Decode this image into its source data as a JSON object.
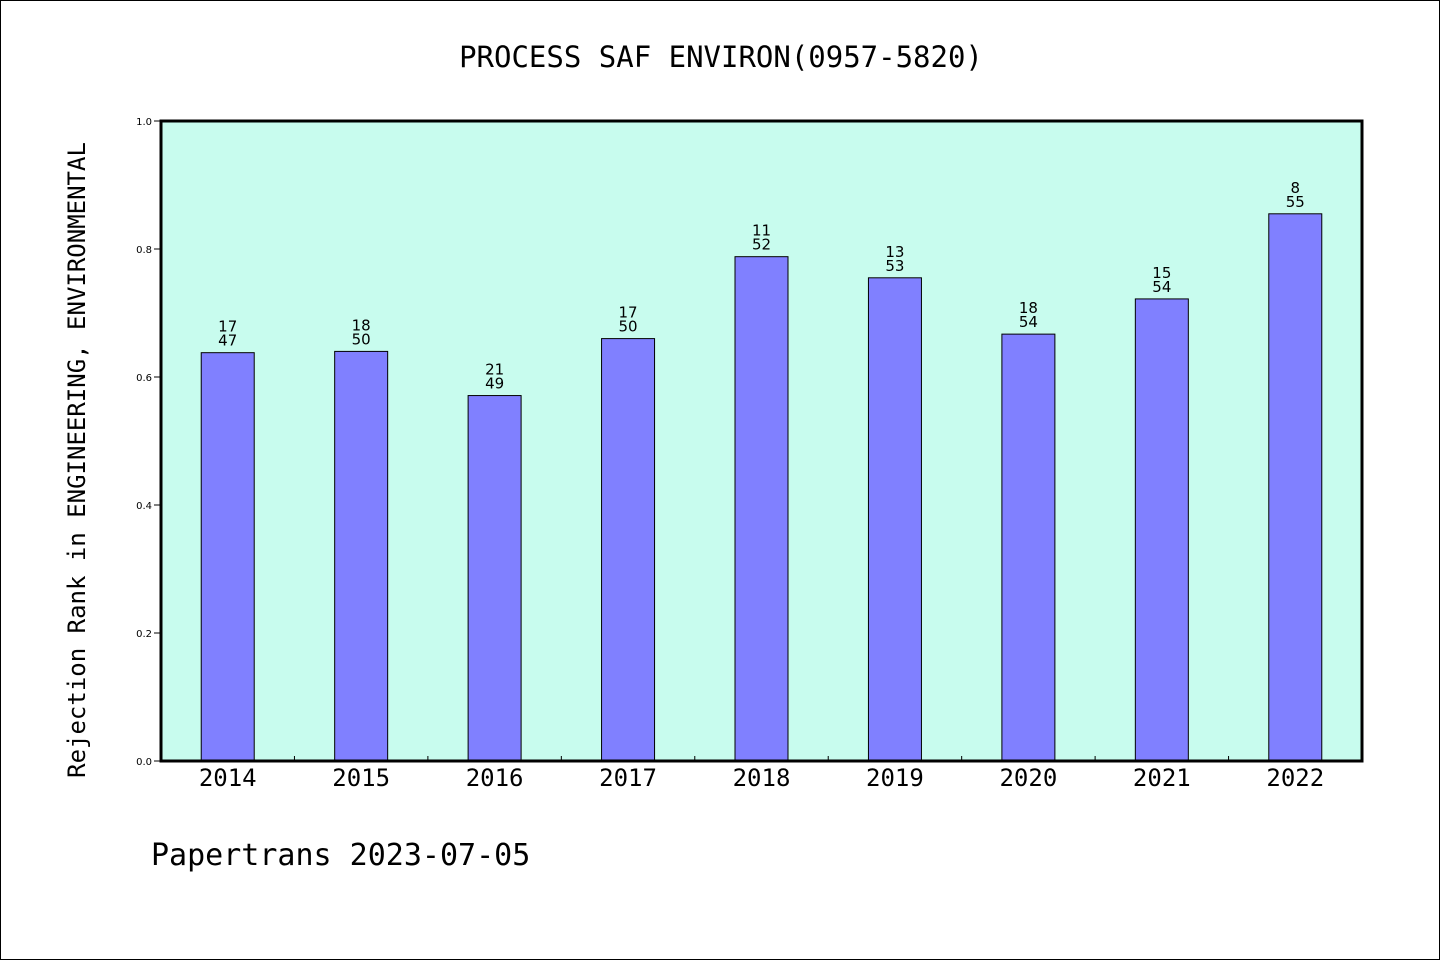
{
  "chart_data": {
    "type": "bar",
    "title": "PROCESS SAF ENVIRON(0957-5820)",
    "xlabel": "",
    "ylabel": "Rejection Rank in ENGINEERING, ENVIRONMENTAL",
    "categories": [
      "2014",
      "2015",
      "2016",
      "2017",
      "2018",
      "2019",
      "2020",
      "2021",
      "2022"
    ],
    "values": [
      0.638,
      0.64,
      0.571,
      0.66,
      0.788,
      0.755,
      0.667,
      0.722,
      0.855
    ],
    "rank": [
      17,
      18,
      21,
      17,
      11,
      13,
      18,
      15,
      8
    ],
    "total": [
      47,
      50,
      49,
      50,
      52,
      53,
      54,
      54,
      55
    ],
    "ylim": [
      0,
      1.0
    ],
    "yticks": [
      "0.0",
      "0.2",
      "0.4",
      "0.6",
      "0.8",
      "1.0"
    ],
    "grid": false,
    "colors": {
      "plot_background": "#c8fcee",
      "bar_fill": "#8080ff",
      "bar_stroke": "#000000"
    }
  },
  "footer": "Papertrans 2023-07-05"
}
